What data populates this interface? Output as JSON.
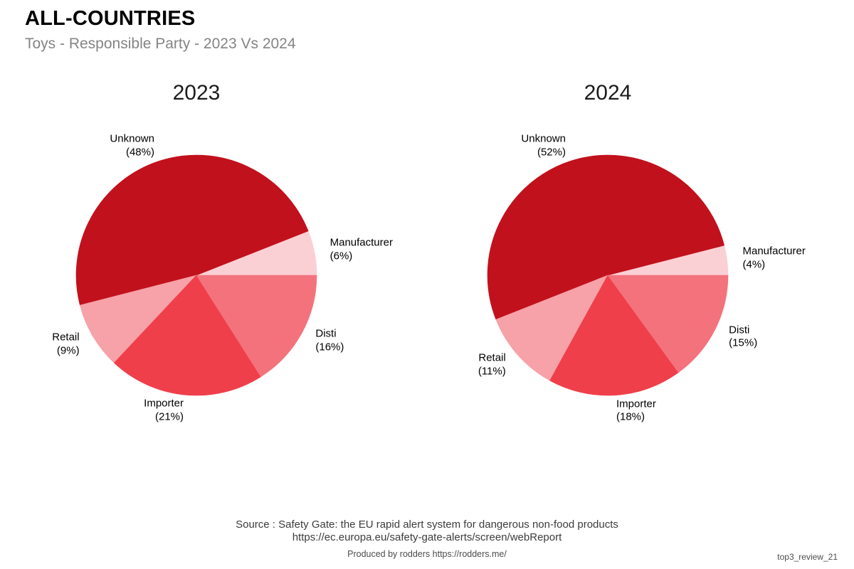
{
  "header": {
    "title": "ALL-COUNTRIES",
    "subtitle": "Toys - Responsible Party - 2023 Vs 2024"
  },
  "chart_data": [
    {
      "type": "pie",
      "title": "2023",
      "start_angle_deg": 0,
      "direction": "counterclockwise",
      "legend": "none",
      "slices": [
        {
          "label": "Manufacturer",
          "value": 6,
          "pct_label": "(6%)",
          "color": "#fad0d5"
        },
        {
          "label": "Unknown",
          "value": 48,
          "pct_label": "(48%)",
          "color": "#c1111c"
        },
        {
          "label": "Retail",
          "value": 9,
          "pct_label": "(9%)",
          "color": "#f7a1a8"
        },
        {
          "label": "Importer",
          "value": 21,
          "pct_label": "(21%)",
          "color": "#ef3f4b"
        },
        {
          "label": "Disti",
          "value": 16,
          "pct_label": "(16%)",
          "color": "#f4727c"
        }
      ]
    },
    {
      "type": "pie",
      "title": "2024",
      "start_angle_deg": 0,
      "direction": "counterclockwise",
      "legend": "none",
      "slices": [
        {
          "label": "Manufacturer",
          "value": 4,
          "pct_label": "(4%)",
          "color": "#fad0d5"
        },
        {
          "label": "Unknown",
          "value": 52,
          "pct_label": "(52%)",
          "color": "#c1111c"
        },
        {
          "label": "Retail",
          "value": 11,
          "pct_label": "(11%)",
          "color": "#f7a1a8"
        },
        {
          "label": "Importer",
          "value": 18,
          "pct_label": "(18%)",
          "color": "#ef3f4b"
        },
        {
          "label": "Disti",
          "value": 15,
          "pct_label": "(15%)",
          "color": "#f4727c"
        }
      ]
    }
  ],
  "footer": {
    "source_line1": "Source : Safety Gate: the EU rapid alert system for dangerous non-food products",
    "source_line2": "https://ec.europa.eu/safety-gate-alerts/screen/webReport",
    "produced_by": "Produced by rodders https://rodders.me/",
    "watermark": "top3_review_21"
  }
}
